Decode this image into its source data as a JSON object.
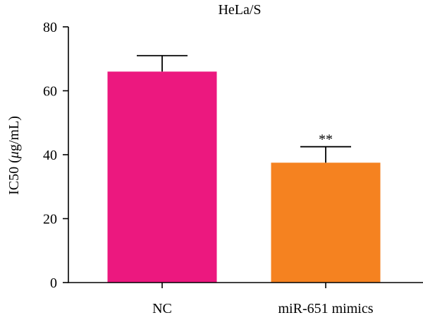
{
  "chart_data": {
    "type": "bar",
    "title": "HeLa/S",
    "xlabel": "",
    "ylabel_prefix": "IC50 (",
    "ylabel_unit_greek": "μ",
    "ylabel_suffix": "g/mL)",
    "ylim": [
      0,
      80
    ],
    "yticks": [
      0,
      20,
      40,
      60,
      80
    ],
    "grid": false,
    "legend": "none",
    "categories": [
      "NC",
      "miR-651 mimics"
    ],
    "values": [
      66,
      37.5
    ],
    "errors": [
      5,
      5
    ],
    "colors": [
      "#ec187f",
      "#f58220"
    ],
    "annotations": [
      "",
      "**"
    ]
  }
}
